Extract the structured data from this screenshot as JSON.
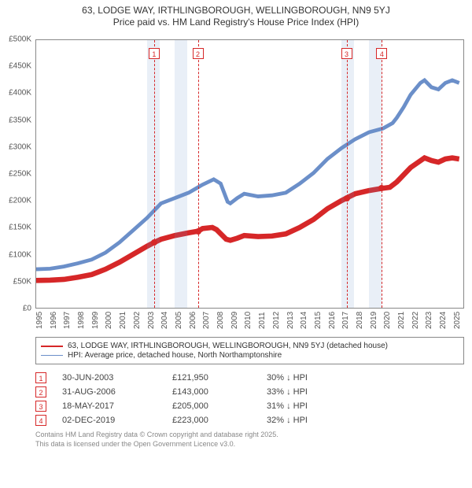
{
  "title": {
    "line1": "63, LODGE WAY, IRTHLINGBOROUGH, WELLINGBOROUGH, NN9 5YJ",
    "line2": "Price paid vs. HM Land Registry's House Price Index (HPI)",
    "fontsize": 12,
    "color": "#333333"
  },
  "chart": {
    "type": "line",
    "background_color": "#ffffff",
    "border_color": "#888888",
    "x": {
      "min": 1995,
      "max": 2025.8,
      "ticks": [
        1995,
        1996,
        1997,
        1998,
        1999,
        2000,
        2001,
        2002,
        2003,
        2004,
        2005,
        2006,
        2007,
        2008,
        2009,
        2010,
        2011,
        2012,
        2013,
        2014,
        2015,
        2016,
        2017,
        2018,
        2019,
        2020,
        2021,
        2022,
        2023,
        2024,
        2025
      ],
      "label_fontsize": 10,
      "label_rotation": -90,
      "label_color": "#555555"
    },
    "y": {
      "min": 0,
      "max": 500000,
      "ticks": [
        0,
        50000,
        100000,
        150000,
        200000,
        250000,
        300000,
        350000,
        400000,
        450000,
        500000
      ],
      "tick_labels": [
        "£0",
        "£50K",
        "£100K",
        "£150K",
        "£200K",
        "£250K",
        "£300K",
        "£350K",
        "£400K",
        "£450K",
        "£500K"
      ],
      "label_fontsize": 10,
      "label_color": "#555555"
    },
    "shaded_bands": {
      "color": "rgba(110,150,200,0.15)",
      "ranges": [
        [
          2003.0,
          2003.9
        ],
        [
          2005.0,
          2005.9
        ],
        [
          2017.0,
          2017.9
        ],
        [
          2019.0,
          2019.9
        ]
      ]
    },
    "markers": {
      "line_color": "#d62728",
      "line_dash": "dashed",
      "box_border_color": "#d62728",
      "box_text_color": "#d62728",
      "box_top_offset": 10,
      "items": [
        {
          "n": "1",
          "x": 2003.5
        },
        {
          "n": "2",
          "x": 2006.66
        },
        {
          "n": "3",
          "x": 2017.38
        },
        {
          "n": "4",
          "x": 2019.92
        }
      ]
    },
    "series": [
      {
        "name": "property_line",
        "label": "63, LODGE WAY, IRTHLINGBOROUGH, WELLINGBOROUGH, NN9 5YJ (detached house)",
        "color": "#d62728",
        "line_width": 2.2,
        "points": [
          [
            1995.0,
            51000
          ],
          [
            1996.0,
            51500
          ],
          [
            1997.0,
            53000
          ],
          [
            1998.0,
            57000
          ],
          [
            1999.0,
            62000
          ],
          [
            2000.0,
            72000
          ],
          [
            2001.0,
            85000
          ],
          [
            2002.0,
            100000
          ],
          [
            2003.0,
            115000
          ],
          [
            2003.5,
            121950
          ],
          [
            2004.0,
            128000
          ],
          [
            2005.0,
            135000
          ],
          [
            2006.0,
            140000
          ],
          [
            2006.66,
            143000
          ],
          [
            2007.0,
            148000
          ],
          [
            2007.7,
            150000
          ],
          [
            2008.0,
            146000
          ],
          [
            2008.7,
            128000
          ],
          [
            2009.0,
            126000
          ],
          [
            2009.5,
            130000
          ],
          [
            2010.0,
            135000
          ],
          [
            2011.0,
            133000
          ],
          [
            2012.0,
            134000
          ],
          [
            2013.0,
            138000
          ],
          [
            2014.0,
            150000
          ],
          [
            2015.0,
            165000
          ],
          [
            2016.0,
            185000
          ],
          [
            2017.0,
            200000
          ],
          [
            2017.38,
            205000
          ],
          [
            2018.0,
            213000
          ],
          [
            2019.0,
            219000
          ],
          [
            2019.92,
            223000
          ],
          [
            2020.5,
            225000
          ],
          [
            2021.0,
            235000
          ],
          [
            2022.0,
            262000
          ],
          [
            2023.0,
            280000
          ],
          [
            2023.5,
            275000
          ],
          [
            2024.0,
            272000
          ],
          [
            2024.5,
            278000
          ],
          [
            2025.0,
            280000
          ],
          [
            2025.5,
            278000
          ]
        ],
        "event_dots": [
          {
            "x": 2003.5,
            "y": 121950
          },
          {
            "x": 2006.66,
            "y": 143000
          },
          {
            "x": 2017.38,
            "y": 205000
          },
          {
            "x": 2019.92,
            "y": 223000
          }
        ]
      },
      {
        "name": "hpi_line",
        "label": "HPI: Average price, detached house, North Northamptonshire",
        "color": "#6b8fc9",
        "line_width": 1.6,
        "points": [
          [
            1995.0,
            72000
          ],
          [
            1996.0,
            73000
          ],
          [
            1997.0,
            77000
          ],
          [
            1998.0,
            83000
          ],
          [
            1999.0,
            90000
          ],
          [
            2000.0,
            103000
          ],
          [
            2001.0,
            122000
          ],
          [
            2002.0,
            145000
          ],
          [
            2003.0,
            168000
          ],
          [
            2004.0,
            195000
          ],
          [
            2005.0,
            205000
          ],
          [
            2006.0,
            215000
          ],
          [
            2007.0,
            230000
          ],
          [
            2007.8,
            240000
          ],
          [
            2008.3,
            232000
          ],
          [
            2008.8,
            198000
          ],
          [
            2009.0,
            195000
          ],
          [
            2009.5,
            205000
          ],
          [
            2010.0,
            213000
          ],
          [
            2011.0,
            208000
          ],
          [
            2012.0,
            210000
          ],
          [
            2013.0,
            215000
          ],
          [
            2014.0,
            232000
          ],
          [
            2015.0,
            252000
          ],
          [
            2016.0,
            278000
          ],
          [
            2017.0,
            298000
          ],
          [
            2018.0,
            315000
          ],
          [
            2019.0,
            328000
          ],
          [
            2020.0,
            335000
          ],
          [
            2020.7,
            345000
          ],
          [
            2021.0,
            355000
          ],
          [
            2021.5,
            375000
          ],
          [
            2022.0,
            398000
          ],
          [
            2022.7,
            420000
          ],
          [
            2023.0,
            425000
          ],
          [
            2023.5,
            412000
          ],
          [
            2024.0,
            408000
          ],
          [
            2024.5,
            420000
          ],
          [
            2025.0,
            425000
          ],
          [
            2025.5,
            420000
          ]
        ]
      }
    ]
  },
  "legend": {
    "border_color": "#888888",
    "fontsize": 10,
    "items": [
      {
        "color": "#d62728",
        "width": 2.2,
        "label": "63, LODGE WAY, IRTHLINGBOROUGH, WELLINGBOROUGH, NN9 5YJ (detached house)"
      },
      {
        "color": "#6b8fc9",
        "width": 1.6,
        "label": "HPI: Average price, detached house, North Northamptonshire"
      }
    ]
  },
  "events": {
    "fontsize": 11,
    "text_color": "#444444",
    "marker_border_color": "#d62728",
    "rows": [
      {
        "n": "1",
        "date": "30-JUN-2003",
        "price": "£121,950",
        "delta": "30% ↓ HPI"
      },
      {
        "n": "2",
        "date": "31-AUG-2006",
        "price": "£143,000",
        "delta": "33% ↓ HPI"
      },
      {
        "n": "3",
        "date": "18-MAY-2017",
        "price": "£205,000",
        "delta": "31% ↓ HPI"
      },
      {
        "n": "4",
        "date": "02-DEC-2019",
        "price": "£223,000",
        "delta": "32% ↓ HPI"
      }
    ]
  },
  "footnote": {
    "line1": "Contains HM Land Registry data © Crown copyright and database right 2025.",
    "line2": "This data is licensed under the Open Government Licence v3.0.",
    "fontsize": 9,
    "color": "#888888"
  }
}
